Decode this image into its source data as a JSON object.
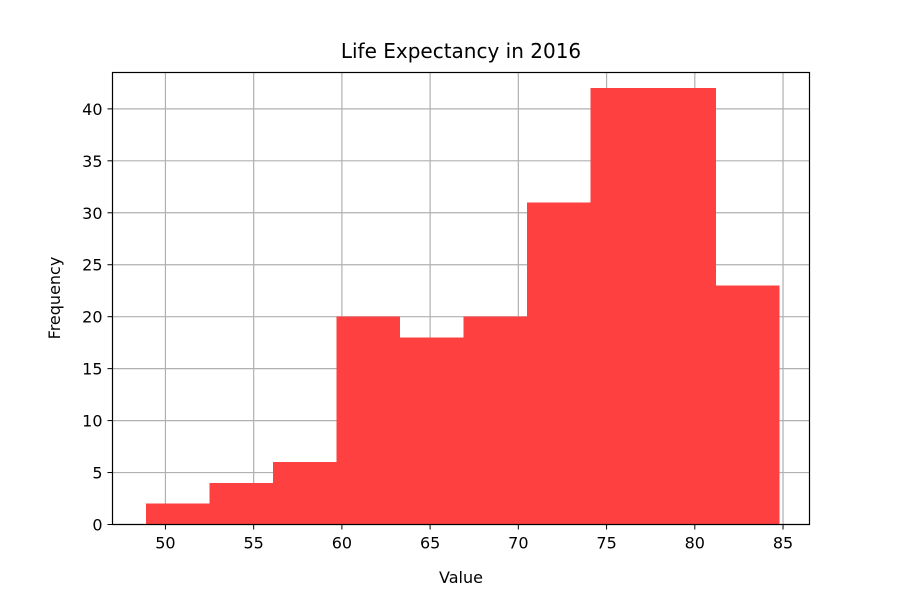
{
  "chart_data": {
    "type": "bar",
    "subtype": "histogram",
    "title": "Life Expectancy in 2016",
    "xlabel": "Value",
    "ylabel": "Frequency",
    "bin_edges": [
      48.9,
      52.5,
      56.1,
      59.7,
      63.3,
      66.9,
      70.5,
      74.1,
      77.7,
      81.2,
      84.8
    ],
    "values": [
      2,
      4,
      6,
      20,
      18,
      20,
      31,
      42,
      42,
      23
    ],
    "xlim": [
      47,
      86.5
    ],
    "ylim": [
      0,
      43.5
    ],
    "x_ticks": [
      50,
      55,
      60,
      65,
      70,
      75,
      80,
      85
    ],
    "y_ticks": [
      0,
      5,
      10,
      15,
      20,
      25,
      30,
      35,
      40
    ],
    "grid": true,
    "bar_color": "#ff4040",
    "grid_color": "#b0b0b0"
  }
}
